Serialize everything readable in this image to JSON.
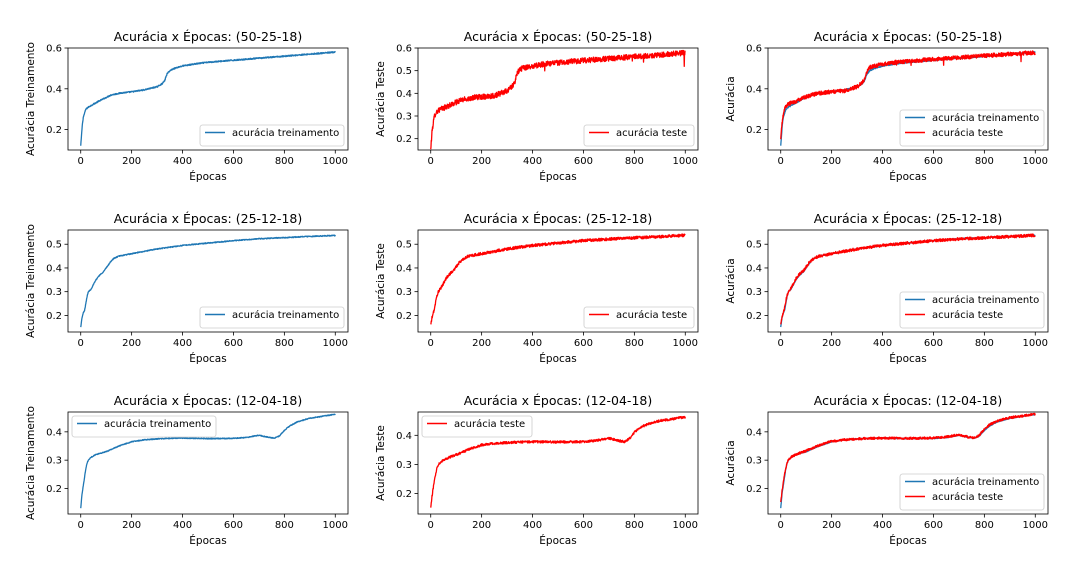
{
  "figure": {
    "colors": {
      "treino": "#1f77b4",
      "teste": "#ff0000"
    }
  },
  "chart_data": [
    {
      "type": "line",
      "title": "Acurácia x Épocas: (50-25-18)",
      "xlabel": "Épocas",
      "ylabel": "Acurácia Treinamento",
      "xlim": [
        0,
        1000
      ],
      "ylim": [
        0.1,
        0.6
      ],
      "xticks": [
        "0",
        "200",
        "400",
        "600",
        "800",
        "1000"
      ],
      "yticks": [
        "0.2",
        "0.4",
        "0.6"
      ],
      "legend_position": "lower-right",
      "series": [
        {
          "name": "acurácia treinamento",
          "color": "#1f77b4",
          "noise": 0.003,
          "x": [
            0,
            3,
            6,
            10,
            15,
            20,
            30,
            50,
            80,
            120,
            160,
            200,
            250,
            300,
            320,
            330,
            335,
            340,
            350,
            360,
            380,
            400,
            450,
            500,
            600,
            700,
            800,
            900,
            1000
          ],
          "y": [
            0.12,
            0.17,
            0.22,
            0.26,
            0.28,
            0.3,
            0.31,
            0.325,
            0.345,
            0.37,
            0.38,
            0.385,
            0.395,
            0.41,
            0.425,
            0.44,
            0.46,
            0.475,
            0.488,
            0.496,
            0.505,
            0.512,
            0.522,
            0.53,
            0.54,
            0.55,
            0.56,
            0.57,
            0.58
          ]
        }
      ]
    },
    {
      "type": "line",
      "title": "Acurácia x Épocas: (50-25-18)",
      "xlabel": "Épocas",
      "ylabel": "Acurácia Teste",
      "xlim": [
        0,
        1000
      ],
      "ylim": [
        0.15,
        0.6
      ],
      "xticks": [
        "0",
        "200",
        "400",
        "600",
        "800",
        "1000"
      ],
      "yticks": [
        "0.2",
        "0.3",
        "0.4",
        "0.5",
        "0.6"
      ],
      "legend_position": "lower-right",
      "series": [
        {
          "name": "acurácia teste",
          "color": "#ff0000",
          "noise": 0.012,
          "spikes": 0.06,
          "x": [
            0,
            3,
            6,
            10,
            15,
            20,
            30,
            50,
            80,
            120,
            160,
            200,
            250,
            300,
            320,
            330,
            335,
            340,
            350,
            360,
            380,
            400,
            450,
            500,
            600,
            700,
            800,
            900,
            1000
          ],
          "y": [
            0.15,
            0.2,
            0.24,
            0.27,
            0.3,
            0.315,
            0.325,
            0.335,
            0.35,
            0.37,
            0.38,
            0.385,
            0.39,
            0.41,
            0.43,
            0.45,
            0.47,
            0.49,
            0.505,
            0.51,
            0.515,
            0.52,
            0.53,
            0.535,
            0.545,
            0.553,
            0.562,
            0.57,
            0.578
          ]
        }
      ]
    },
    {
      "type": "line",
      "title": "Acurácia x Épocas: (50-25-18)",
      "xlabel": "Épocas",
      "ylabel": "Acurácia",
      "xlim": [
        0,
        1000
      ],
      "ylim": [
        0.1,
        0.6
      ],
      "xticks": [
        "0",
        "200",
        "400",
        "600",
        "800",
        "1000"
      ],
      "yticks": [
        "0.2",
        "0.4",
        "0.6"
      ],
      "legend_position": "lower-right",
      "series": [
        {
          "name": "acurácia treinamento",
          "color": "#1f77b4",
          "noise": 0.003,
          "x": [
            0,
            3,
            6,
            10,
            15,
            20,
            30,
            50,
            80,
            120,
            160,
            200,
            250,
            300,
            320,
            330,
            335,
            340,
            350,
            360,
            380,
            400,
            450,
            500,
            600,
            700,
            800,
            900,
            1000
          ],
          "y": [
            0.12,
            0.17,
            0.22,
            0.26,
            0.28,
            0.3,
            0.31,
            0.325,
            0.345,
            0.37,
            0.38,
            0.385,
            0.395,
            0.41,
            0.425,
            0.44,
            0.46,
            0.475,
            0.488,
            0.496,
            0.505,
            0.512,
            0.522,
            0.53,
            0.54,
            0.55,
            0.56,
            0.57,
            0.58
          ]
        },
        {
          "name": "acurácia teste",
          "color": "#ff0000",
          "noise": 0.01,
          "spikes": 0.04,
          "x": [
            0,
            3,
            6,
            10,
            15,
            20,
            30,
            50,
            80,
            120,
            160,
            200,
            250,
            300,
            320,
            330,
            335,
            340,
            350,
            360,
            380,
            400,
            450,
            500,
            600,
            700,
            800,
            900,
            1000
          ],
          "y": [
            0.15,
            0.2,
            0.24,
            0.27,
            0.3,
            0.315,
            0.325,
            0.335,
            0.35,
            0.37,
            0.38,
            0.385,
            0.39,
            0.41,
            0.43,
            0.45,
            0.47,
            0.49,
            0.505,
            0.51,
            0.515,
            0.52,
            0.53,
            0.535,
            0.545,
            0.553,
            0.562,
            0.57,
            0.578
          ]
        }
      ]
    },
    {
      "type": "line",
      "title": "Acurácia x Épocas: (25-12-18)",
      "xlabel": "Épocas",
      "ylabel": "Acurácia Treinamento",
      "xlim": [
        0,
        1000
      ],
      "ylim": [
        0.13,
        0.56
      ],
      "xticks": [
        "0",
        "200",
        "400",
        "600",
        "800",
        "1000"
      ],
      "yticks": [
        "0.2",
        "0.3",
        "0.4",
        "0.5"
      ],
      "legend_position": "lower-right",
      "series": [
        {
          "name": "acurácia treinamento",
          "color": "#1f77b4",
          "noise": 0.002,
          "x": [
            0,
            5,
            10,
            15,
            20,
            25,
            30,
            40,
            50,
            60,
            70,
            80,
            90,
            100,
            110,
            120,
            130,
            150,
            200,
            300,
            400,
            500,
            600,
            700,
            800,
            900,
            1000
          ],
          "y": [
            0.15,
            0.19,
            0.21,
            0.22,
            0.25,
            0.28,
            0.3,
            0.31,
            0.33,
            0.35,
            0.365,
            0.375,
            0.385,
            0.4,
            0.415,
            0.43,
            0.44,
            0.45,
            0.46,
            0.48,
            0.495,
            0.505,
            0.515,
            0.523,
            0.528,
            0.533,
            0.537
          ]
        }
      ]
    },
    {
      "type": "line",
      "title": "Acurácia x Épocas: (25-12-18)",
      "xlabel": "Épocas",
      "ylabel": "Acurácia Teste",
      "xlim": [
        0,
        1000
      ],
      "ylim": [
        0.13,
        0.56
      ],
      "xticks": [
        "0",
        "200",
        "400",
        "600",
        "800",
        "1000"
      ],
      "yticks": [
        "0.2",
        "0.3",
        "0.4",
        "0.5"
      ],
      "legend_position": "lower-right",
      "series": [
        {
          "name": "acurácia teste",
          "color": "#ff0000",
          "noise": 0.006,
          "x": [
            0,
            5,
            10,
            15,
            20,
            25,
            30,
            40,
            50,
            60,
            70,
            80,
            90,
            100,
            110,
            120,
            130,
            150,
            200,
            300,
            400,
            500,
            600,
            700,
            800,
            900,
            1000
          ],
          "y": [
            0.16,
            0.19,
            0.21,
            0.23,
            0.26,
            0.285,
            0.3,
            0.315,
            0.335,
            0.355,
            0.37,
            0.38,
            0.39,
            0.405,
            0.42,
            0.43,
            0.44,
            0.45,
            0.46,
            0.48,
            0.495,
            0.505,
            0.515,
            0.522,
            0.527,
            0.532,
            0.538
          ]
        }
      ]
    },
    {
      "type": "line",
      "title": "Acurácia x Épocas: (25-12-18)",
      "xlabel": "Épocas",
      "ylabel": "Acurácia",
      "xlim": [
        0,
        1000
      ],
      "ylim": [
        0.13,
        0.56
      ],
      "xticks": [
        "0",
        "200",
        "400",
        "600",
        "800",
        "1000"
      ],
      "yticks": [
        "0.2",
        "0.3",
        "0.4",
        "0.5"
      ],
      "legend_position": "lower-right",
      "series": [
        {
          "name": "acurácia treinamento",
          "color": "#1f77b4",
          "noise": 0.002,
          "x": [
            0,
            5,
            10,
            15,
            20,
            25,
            30,
            40,
            50,
            60,
            70,
            80,
            90,
            100,
            110,
            120,
            130,
            150,
            200,
            300,
            400,
            500,
            600,
            700,
            800,
            900,
            1000
          ],
          "y": [
            0.15,
            0.19,
            0.21,
            0.22,
            0.25,
            0.28,
            0.3,
            0.31,
            0.33,
            0.35,
            0.365,
            0.375,
            0.385,
            0.4,
            0.415,
            0.43,
            0.44,
            0.45,
            0.46,
            0.48,
            0.495,
            0.505,
            0.515,
            0.523,
            0.528,
            0.533,
            0.537
          ]
        },
        {
          "name": "acurácia teste",
          "color": "#ff0000",
          "noise": 0.006,
          "x": [
            0,
            5,
            10,
            15,
            20,
            25,
            30,
            40,
            50,
            60,
            70,
            80,
            90,
            100,
            110,
            120,
            130,
            150,
            200,
            300,
            400,
            500,
            600,
            700,
            800,
            900,
            1000
          ],
          "y": [
            0.16,
            0.19,
            0.21,
            0.23,
            0.26,
            0.285,
            0.3,
            0.315,
            0.335,
            0.355,
            0.37,
            0.38,
            0.39,
            0.405,
            0.42,
            0.43,
            0.44,
            0.45,
            0.46,
            0.48,
            0.495,
            0.505,
            0.515,
            0.522,
            0.527,
            0.532,
            0.538
          ]
        }
      ]
    },
    {
      "type": "line",
      "title": "Acurácia x Épocas: (12-04-18)",
      "xlabel": "Épocas",
      "ylabel": "Acurácia Treinamento",
      "xlim": [
        0,
        1000
      ],
      "ylim": [
        0.11,
        0.47
      ],
      "xticks": [
        "0",
        "200",
        "400",
        "600",
        "800",
        "1000"
      ],
      "yticks": [
        "0.2",
        "0.3",
        "0.4"
      ],
      "legend_position": "upper-left",
      "series": [
        {
          "name": "acurácia treinamento",
          "color": "#1f77b4",
          "noise": 0.0015,
          "x": [
            0,
            5,
            10,
            15,
            20,
            25,
            30,
            40,
            60,
            80,
            100,
            150,
            200,
            250,
            300,
            350,
            400,
            500,
            600,
            650,
            700,
            730,
            760,
            780,
            800,
            820,
            850,
            900,
            950,
            1000
          ],
          "y": [
            0.13,
            0.18,
            0.21,
            0.24,
            0.27,
            0.29,
            0.3,
            0.31,
            0.32,
            0.325,
            0.33,
            0.35,
            0.365,
            0.372,
            0.375,
            0.377,
            0.378,
            0.376,
            0.377,
            0.38,
            0.388,
            0.382,
            0.378,
            0.385,
            0.405,
            0.42,
            0.435,
            0.448,
            0.455,
            0.462
          ]
        }
      ]
    },
    {
      "type": "line",
      "title": "Acurácia x Épocas: (12-04-18)",
      "xlabel": "Épocas",
      "ylabel": "Acurácia Teste",
      "xlim": [
        0,
        1000
      ],
      "ylim": [
        0.13,
        0.48
      ],
      "xticks": [
        "0",
        "200",
        "400",
        "600",
        "800",
        "1000"
      ],
      "yticks": [
        "0.2",
        "0.3",
        "0.4"
      ],
      "legend_position": "upper-left",
      "series": [
        {
          "name": "acurácia teste",
          "color": "#ff0000",
          "noise": 0.004,
          "x": [
            0,
            5,
            10,
            15,
            20,
            25,
            30,
            40,
            60,
            80,
            100,
            150,
            200,
            250,
            300,
            350,
            400,
            500,
            600,
            650,
            700,
            730,
            760,
            780,
            800,
            820,
            850,
            900,
            950,
            1000
          ],
          "y": [
            0.15,
            0.19,
            0.22,
            0.25,
            0.27,
            0.29,
            0.3,
            0.31,
            0.32,
            0.327,
            0.333,
            0.352,
            0.367,
            0.372,
            0.375,
            0.377,
            0.378,
            0.377,
            0.378,
            0.382,
            0.39,
            0.383,
            0.378,
            0.388,
            0.41,
            0.425,
            0.438,
            0.45,
            0.456,
            0.463
          ]
        }
      ]
    },
    {
      "type": "line",
      "title": "Acurácia x Épocas: (12-04-18)",
      "xlabel": "Épocas",
      "ylabel": "Acurácia",
      "xlim": [
        0,
        1000
      ],
      "ylim": [
        0.11,
        0.47
      ],
      "xticks": [
        "0",
        "200",
        "400",
        "600",
        "800",
        "1000"
      ],
      "yticks": [
        "0.2",
        "0.3",
        "0.4"
      ],
      "legend_position": "lower-right",
      "series": [
        {
          "name": "acurácia treinamento",
          "color": "#1f77b4",
          "noise": 0.0015,
          "x": [
            0,
            5,
            10,
            15,
            20,
            25,
            30,
            40,
            60,
            80,
            100,
            150,
            200,
            250,
            300,
            350,
            400,
            500,
            600,
            650,
            700,
            730,
            760,
            780,
            800,
            820,
            850,
            900,
            950,
            1000
          ],
          "y": [
            0.13,
            0.18,
            0.21,
            0.24,
            0.27,
            0.29,
            0.3,
            0.31,
            0.32,
            0.325,
            0.33,
            0.35,
            0.365,
            0.372,
            0.375,
            0.377,
            0.378,
            0.376,
            0.377,
            0.38,
            0.388,
            0.382,
            0.378,
            0.385,
            0.405,
            0.42,
            0.435,
            0.448,
            0.455,
            0.462
          ]
        },
        {
          "name": "acurácia teste",
          "color": "#ff0000",
          "noise": 0.004,
          "x": [
            0,
            5,
            10,
            15,
            20,
            25,
            30,
            40,
            60,
            80,
            100,
            150,
            200,
            250,
            300,
            350,
            400,
            500,
            600,
            650,
            700,
            730,
            760,
            780,
            800,
            820,
            850,
            900,
            950,
            1000
          ],
          "y": [
            0.15,
            0.19,
            0.22,
            0.25,
            0.27,
            0.29,
            0.3,
            0.31,
            0.32,
            0.327,
            0.333,
            0.352,
            0.367,
            0.372,
            0.375,
            0.377,
            0.378,
            0.377,
            0.378,
            0.382,
            0.39,
            0.383,
            0.378,
            0.388,
            0.41,
            0.425,
            0.438,
            0.45,
            0.456,
            0.463
          ]
        }
      ]
    }
  ]
}
